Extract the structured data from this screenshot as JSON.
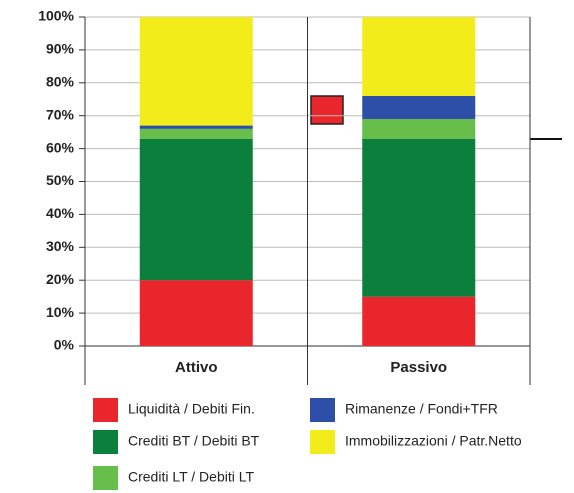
{
  "chart_data": {
    "type": "stacked_bar",
    "categories": [
      "Attivo",
      "Passivo"
    ],
    "series": [
      {
        "name": "Liquidità / Debiti Fin.",
        "color": "#e8262b",
        "values": [
          20,
          15
        ]
      },
      {
        "name": "Crediti BT / Debiti BT",
        "color": "#0b7f3c",
        "values": [
          43,
          48
        ]
      },
      {
        "name": "Crediti LT / Debiti LT",
        "color": "#67be4a",
        "values": [
          3,
          6
        ]
      },
      {
        "name": "Rimanenze / Fondi+TFR",
        "color": "#2e4fa8",
        "values": [
          1,
          7
        ]
      },
      {
        "name": "Immobilizzazioni / Patr.Netto",
        "color": "#f2ec1a",
        "values": [
          33,
          24
        ]
      }
    ],
    "ylim": [
      0,
      100
    ],
    "yticks": [
      {
        "value": 0,
        "label": "0%"
      },
      {
        "value": 10,
        "label": "10%"
      },
      {
        "value": 20,
        "label": "20%"
      },
      {
        "value": 30,
        "label": "30%"
      },
      {
        "value": 40,
        "label": "40%"
      },
      {
        "value": 50,
        "label": "50%"
      },
      {
        "value": 60,
        "label": "60%"
      },
      {
        "value": 70,
        "label": "70%"
      },
      {
        "value": 80,
        "label": "80%"
      },
      {
        "value": 90,
        "label": "90%"
      },
      {
        "value": 100,
        "label": "100%"
      }
    ],
    "grid": true
  }
}
